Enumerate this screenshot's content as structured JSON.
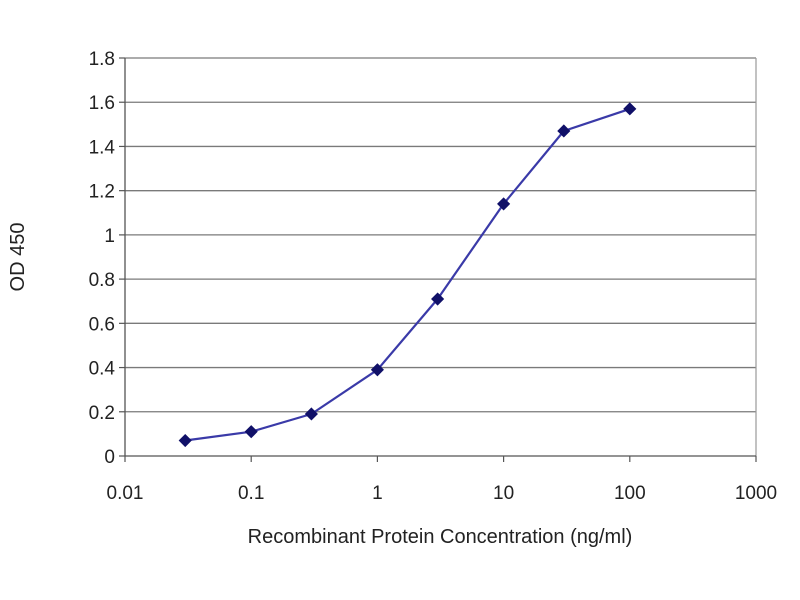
{
  "chart_data": {
    "type": "line",
    "title": "",
    "xlabel": "Recombinant Protein Concentration (ng/ml)",
    "ylabel": "OD 450",
    "x_scale": "log",
    "xlim": [
      0.01,
      1000
    ],
    "ylim": [
      0,
      1.8
    ],
    "x_ticks": [
      0.01,
      0.1,
      1,
      10,
      100,
      1000
    ],
    "x_tick_labels": [
      "0.01",
      "0.1",
      "1",
      "10",
      "100",
      "1000"
    ],
    "y_ticks": [
      0,
      0.2,
      0.4,
      0.6,
      0.8,
      1,
      1.2,
      1.4,
      1.6,
      1.8
    ],
    "y_tick_labels": [
      "0",
      "0.2",
      "0.4",
      "0.6",
      "0.8",
      "1",
      "1.2",
      "1.4",
      "1.6",
      "1.8"
    ],
    "grid": "horizontal",
    "legend": "none",
    "series": [
      {
        "color": "#2a2aa0",
        "marker": "diamond",
        "x": [
          0.03,
          0.1,
          0.3,
          1,
          3,
          10,
          30,
          100
        ],
        "y": [
          0.07,
          0.11,
          0.19,
          0.39,
          0.71,
          1.14,
          1.47,
          1.57
        ]
      }
    ]
  },
  "colors": {
    "line": "#3a3aa8",
    "marker": "#101068",
    "grid": "#7a7a7a",
    "axis": "#555555",
    "plot_border": "#9a9a9a"
  }
}
